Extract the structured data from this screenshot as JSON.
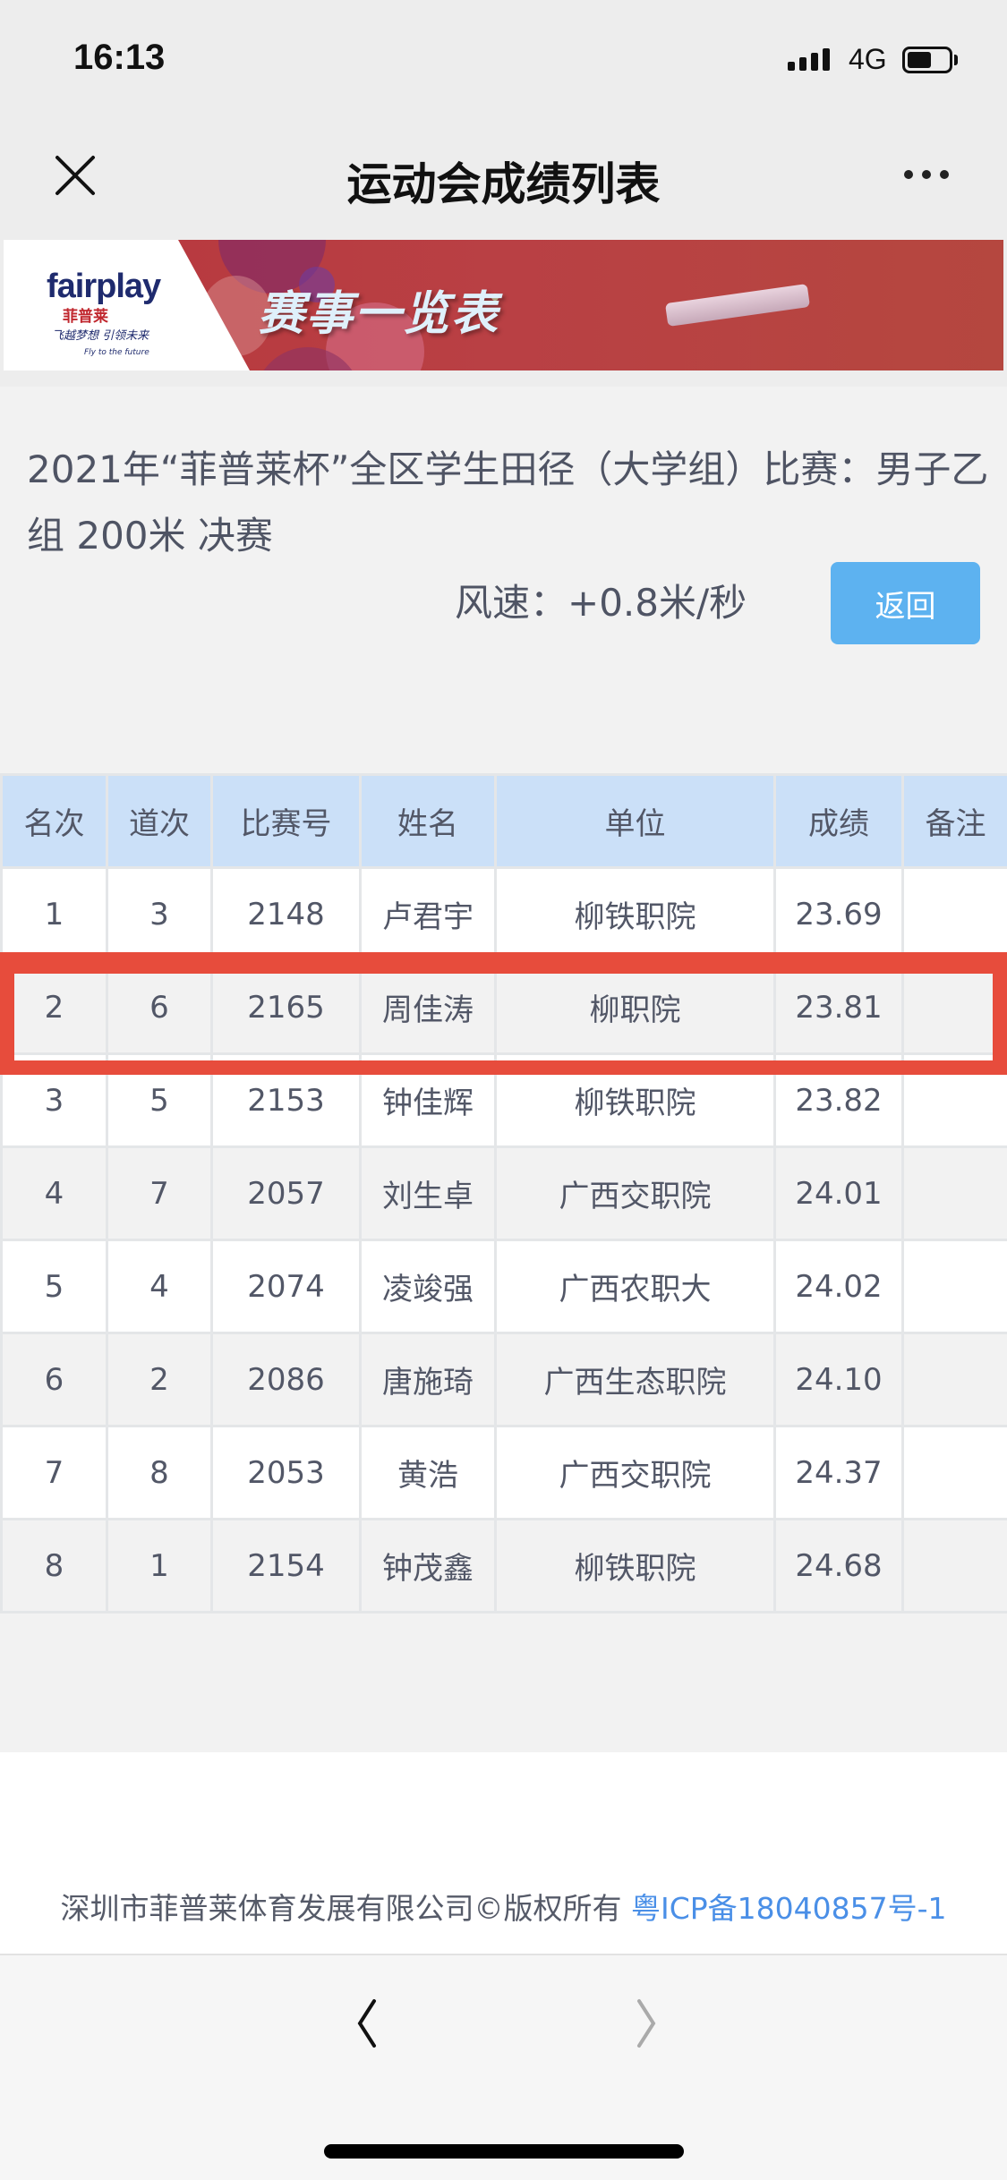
{
  "status_bar": {
    "time": "16:13",
    "network": "4G",
    "battery_level": 0.6
  },
  "nav": {
    "title": "运动会成绩列表",
    "close_icon": "close-icon",
    "more_icon": "more-icon"
  },
  "banner": {
    "logo_text": "fairplay",
    "logo_cn": "菲普莱",
    "slogan": "飞越梦想 引领未来",
    "slogan_en": "Fly to the future",
    "title": "赛事一览表",
    "colors": {
      "primary": "#b7373d"
    }
  },
  "event": {
    "title": "2021年“菲普莱杯”全区学生田径（大学组）比赛：男子乙组 200米 决赛",
    "wind": "风速：+0.8米/秒",
    "back_label": "返回"
  },
  "table": {
    "headers": [
      "名次",
      "道次",
      "比赛号",
      "姓名",
      "单位",
      "成绩",
      "备注"
    ],
    "rows": [
      [
        "1",
        "3",
        "2148",
        "卢君宇",
        "柳铁职院",
        "23.69",
        ""
      ],
      [
        "2",
        "6",
        "2165",
        "周佳涛",
        "柳职院",
        "23.81",
        ""
      ],
      [
        "3",
        "5",
        "2153",
        "钟佳辉",
        "柳铁职院",
        "23.82",
        ""
      ],
      [
        "4",
        "7",
        "2057",
        "刘生卓",
        "广西交职院",
        "24.01",
        ""
      ],
      [
        "5",
        "4",
        "2074",
        "凌竣强",
        "广西农职大",
        "24.02",
        ""
      ],
      [
        "6",
        "2",
        "2086",
        "唐施琦",
        "广西生态职院",
        "24.10",
        ""
      ],
      [
        "7",
        "8",
        "2053",
        "黄浩",
        "广西交职院",
        "24.37",
        ""
      ],
      [
        "8",
        "1",
        "2154",
        "钟茂鑫",
        "柳铁职院",
        "24.68",
        ""
      ]
    ],
    "highlighted_row": 2,
    "highlight_color": "#e74c3c"
  },
  "footer": {
    "copyright": "深圳市菲普莱体育发展有限公司©版权所有",
    "icp": "粤ICP备18040857号-1"
  }
}
